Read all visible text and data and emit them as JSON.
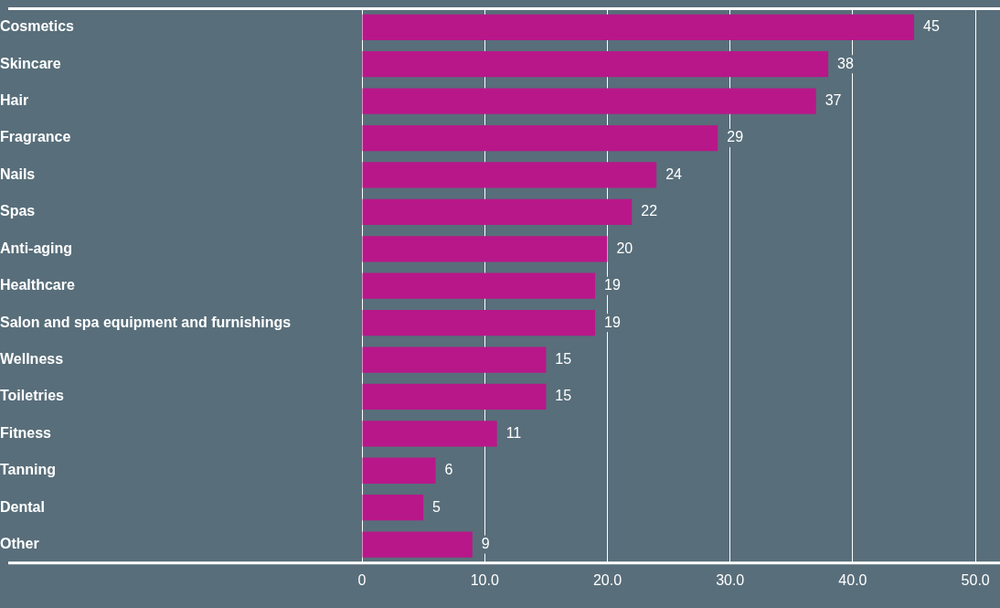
{
  "chart_data": {
    "type": "bar",
    "orientation": "horizontal",
    "categories": [
      "Cosmetics",
      "Skincare",
      "Hair",
      "Fragrance",
      "Nails",
      "Spas",
      "Anti-aging",
      "Healthcare",
      "Salon and spa equipment and furnishings",
      "Wellness",
      "Toiletries",
      "Fitness",
      "Tanning",
      "Dental",
      "Other"
    ],
    "values": [
      45,
      38,
      37,
      29,
      24,
      22,
      20,
      19,
      19,
      15,
      15,
      11,
      6,
      5,
      9
    ],
    "color": "#b8178a",
    "xlim": [
      0,
      52
    ],
    "xticks": [
      0,
      {
        "value": 10,
        "label": "10.0"
      },
      {
        "value": 20,
        "label": "20.0"
      },
      {
        "value": 30,
        "label": "30.0"
      },
      {
        "value": 40,
        "label": "40.0"
      },
      {
        "value": 50,
        "label": "50.0"
      }
    ],
    "grid": "x",
    "legend": false,
    "data_labels": true
  }
}
